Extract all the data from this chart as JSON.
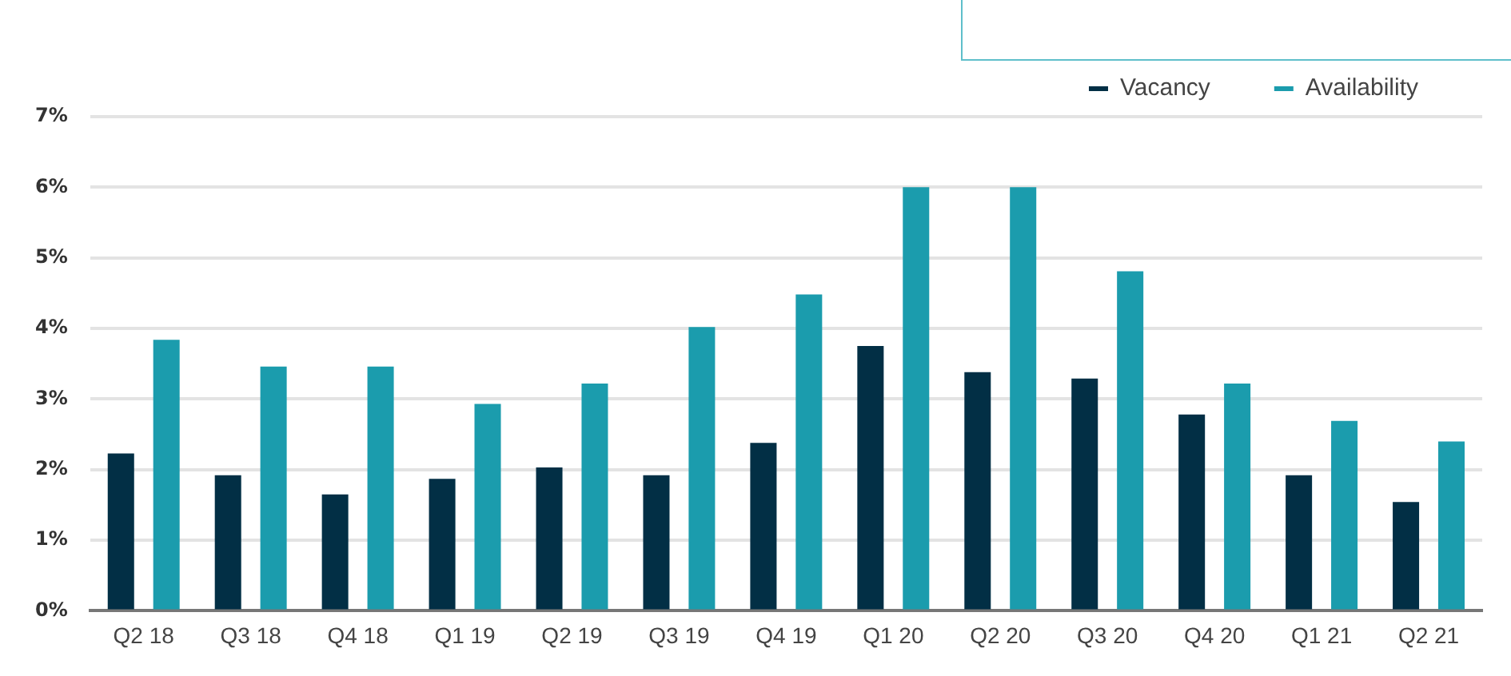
{
  "chart_data": {
    "type": "bar",
    "categories": [
      "Q2 18",
      "Q3 18",
      "Q4 18",
      "Q1 19",
      "Q2 19",
      "Q3 19",
      "Q4 19",
      "Q1 20",
      "Q2 20",
      "Q3 20",
      "Q4 20",
      "Q1 21",
      "Q2 21"
    ],
    "series": [
      {
        "name": "Vacancy",
        "color": "#022f45",
        "values": [
          2.23,
          1.92,
          1.65,
          1.87,
          2.03,
          1.92,
          2.38,
          3.75,
          3.38,
          3.29,
          2.78,
          1.92,
          1.54
        ]
      },
      {
        "name": "Availability",
        "color": "#1b9cad",
        "values": [
          3.84,
          3.46,
          3.46,
          2.93,
          3.22,
          4.02,
          4.48,
          6.0,
          6.0,
          4.81,
          3.22,
          2.69,
          2.4
        ]
      }
    ],
    "ylim": [
      0,
      7
    ],
    "yticks": [
      {
        "value": 0,
        "label": "0%"
      },
      {
        "value": 1,
        "label": "1%"
      },
      {
        "value": 2,
        "label": "2%"
      },
      {
        "value": 3,
        "label": "3%"
      },
      {
        "value": 4,
        "label": "4%"
      },
      {
        "value": 5,
        "label": "5%"
      },
      {
        "value": 6,
        "label": "6%"
      },
      {
        "value": 7,
        "label": "7%"
      }
    ],
    "grid": "y",
    "legend": "top right"
  }
}
